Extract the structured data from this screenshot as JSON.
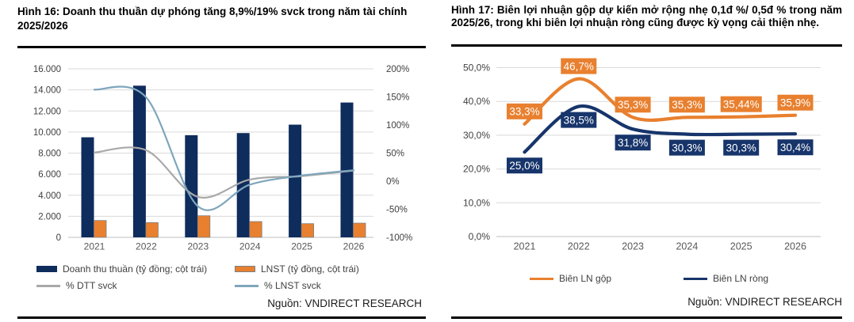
{
  "panels": [
    {
      "id": "hinh-16",
      "title": "Hình 16: Doanh thu thuần dự phóng tăng 8,9%/19% svck trong năm tài chính 2025/2026",
      "source": "Nguồn: VNDIRECT RESEARCH",
      "legend": [
        {
          "label": "Doanh thu thuần (tỷ đồng; cột trái)",
          "swatch": "bar",
          "color": "#0E2C5C"
        },
        {
          "label": "LNST (tỷ đồng, cột trái)",
          "swatch": "bar",
          "color": "#E8802F",
          "border": "#7F7F7F"
        },
        {
          "label": "% DTT svck",
          "swatch": "line",
          "color": "#A9A9A9"
        },
        {
          "label": "% LNST svck",
          "swatch": "line",
          "color": "#7EA6BC"
        }
      ]
    },
    {
      "id": "hinh-17",
      "title": "Hình 17: Biên lợi nhuận gộp dự kiến mở rộng nhẹ 0,1đ %/ 0,5đ % trong năm 2025/26, trong khi biên lợi nhuận ròng cũng được kỳ vọng cải thiện nhẹ.",
      "source": "Nguồn: VNDIRECT RESEARCH",
      "legend": [
        {
          "label": "Biên LN gộp",
          "swatch": "line",
          "color": "#E8802F"
        },
        {
          "label": "Biên LN ròng",
          "swatch": "line",
          "color": "#17356B"
        }
      ]
    }
  ],
  "chart_data": [
    {
      "type": "bar",
      "subtype": "combo-bar-line-dual-axis",
      "categories": [
        "2021",
        "2022",
        "2023",
        "2024",
        "2025",
        "2026"
      ],
      "series": [
        {
          "name": "Doanh thu thuần (tỷ đồng; cột trái)",
          "type": "bar",
          "axis": "left",
          "color": "#0E2C5C",
          "values": [
            9500,
            14400,
            9700,
            9900,
            10700,
            12800
          ]
        },
        {
          "name": "LNST (tỷ đồng, cột trái)",
          "type": "bar",
          "axis": "left",
          "color": "#E8802F",
          "border": "#7F7F7F",
          "values": [
            1600,
            1400,
            2050,
            1500,
            1300,
            1350
          ]
        },
        {
          "name": "% DTT svck",
          "type": "line",
          "axis": "right",
          "color": "#A9A9A9",
          "values": [
            51,
            55,
            -28,
            3,
            9,
            19
          ]
        },
        {
          "name": "% LNST svck",
          "type": "line",
          "axis": "right",
          "color": "#7EA6BC",
          "values": [
            163,
            149,
            -45,
            -6,
            10,
            19.5
          ]
        }
      ],
      "left_axis": {
        "min": 0,
        "max": 16000,
        "step": 2000,
        "tick_labels": [
          "0",
          "2.000",
          "4.000",
          "6.000",
          "8.000",
          "10.000",
          "12.000",
          "14.000",
          "16.000"
        ]
      },
      "right_axis": {
        "min": -100,
        "max": 200,
        "step": 50,
        "tick_labels": [
          "-100%",
          "-50%",
          "0%",
          "50%",
          "100%",
          "150%",
          "200%"
        ]
      },
      "grid": true,
      "smooth_lines": true,
      "legend_position": "bottom"
    },
    {
      "type": "line",
      "categories": [
        "2021",
        "2022",
        "2023",
        "2024",
        "2025",
        "2026"
      ],
      "series": [
        {
          "name": "Biên LN gộp",
          "color": "#E8802F",
          "label_side": "above",
          "values": [
            33.3,
            46.7,
            35.3,
            35.3,
            35.44,
            35.9
          ],
          "point_labels": [
            "33,3%",
            "46,7%",
            "35,3%",
            "35,3%",
            "35,44%",
            "35,9%"
          ]
        },
        {
          "name": "Biên LN ròng",
          "color": "#17356B",
          "label_side": "below",
          "values": [
            25.0,
            38.5,
            31.8,
            30.3,
            30.3,
            30.4
          ],
          "point_labels": [
            "25,0%",
            "38,5%",
            "31,8%",
            "30,3%",
            "30,3%",
            "30,4%"
          ]
        }
      ],
      "y_axis": {
        "min": 0,
        "max": 50,
        "step": 10,
        "tick_labels": [
          "0,0%",
          "10,0%",
          "20,0%",
          "30,0%",
          "40,0%",
          "50,0%"
        ]
      },
      "grid": true,
      "smooth_lines": true,
      "legend_position": "bottom"
    }
  ],
  "style_colors": {
    "gridline": "#D9D9D9",
    "axis_line": "#BFBFBF",
    "tick_text": "#404040",
    "year_text": "#595959",
    "rule": "#000000",
    "label_text_on_box": "#FFFFFF"
  }
}
